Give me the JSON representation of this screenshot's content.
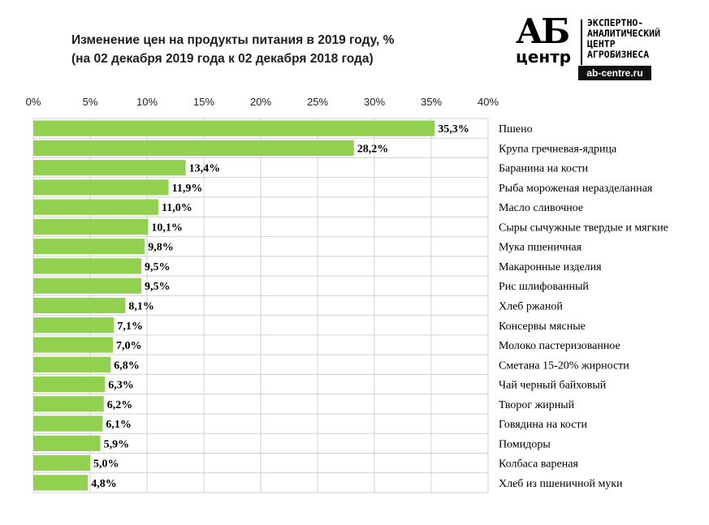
{
  "header": {
    "title_line1": "Изменение цен на продукты питания в 2019 году, %",
    "title_line2": "(на 02 декабря 2019 года к 02 декабря 2018 года)"
  },
  "logo": {
    "ab": "АБ",
    "centr": "центр",
    "line1": "ЭКСПЕРТНО-",
    "line2": "АНАЛИТИЧЕСКИЙ",
    "line3": "ЦЕНТР",
    "line4": "АГРОБИЗНЕСА",
    "url": "ab-centre.ru"
  },
  "colors": {
    "bar": "#92D050",
    "grid": "#d0d0d0"
  },
  "chart_data": {
    "type": "bar",
    "orientation": "horizontal",
    "title": "Изменение цен на продукты питания в 2019 году, %",
    "subtitle": "(на 02 декабря 2019 года к 02 декабря 2018 года)",
    "xlim": [
      0,
      40
    ],
    "x_ticks": [
      0,
      5,
      10,
      15,
      20,
      25,
      30,
      35,
      40
    ],
    "x_tick_labels": [
      "0%",
      "5%",
      "10%",
      "15%",
      "20%",
      "25%",
      "30%",
      "35%",
      "40%"
    ],
    "axis_position": "top",
    "grid": true,
    "categories": [
      "Пшено",
      "Крупа гречневая-ядрица",
      "Баранина на кости",
      "Рыба мороженая неразделанная",
      "Масло сливочное",
      "Сыры сычужные твердые и мягкие",
      "Мука пшеничная",
      "Макаронные изделия",
      "Рис шлифованный",
      "Хлеб ржаной",
      "Консервы мясные",
      "Молоко пастеризованное",
      "Сметана 15-20% жирности",
      "Чай черный байховый",
      "Творог жирный",
      "Говядина на кости",
      "Помидоры",
      "Колбаса вареная",
      "Хлеб из пшеничной муки"
    ],
    "values": [
      35.3,
      28.2,
      13.4,
      11.9,
      11.0,
      10.1,
      9.8,
      9.5,
      9.5,
      8.1,
      7.1,
      7.0,
      6.8,
      6.3,
      6.2,
      6.1,
      5.9,
      5.0,
      4.8
    ],
    "value_labels": [
      "35,3%",
      "28,2%",
      "13,4%",
      "11,9%",
      "11,0%",
      "10,1%",
      "9,8%",
      "9,5%",
      "9,5%",
      "8,1%",
      "7,1%",
      "7,0%",
      "6,8%",
      "6,3%",
      "6,2%",
      "6,1%",
      "5,9%",
      "5,0%",
      "4,8%"
    ]
  }
}
